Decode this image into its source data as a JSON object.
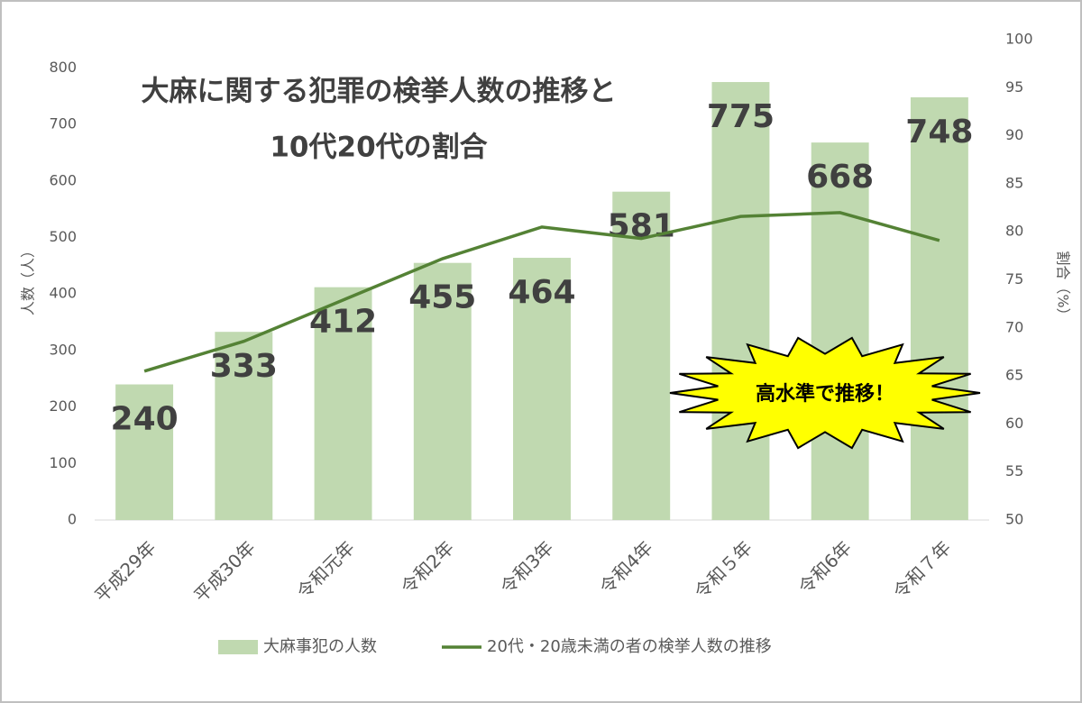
{
  "chart_data": {
    "type": "bar_line",
    "title": [
      "大麻に関する犯罪の検挙人数の推移と",
      "10代20代の割合"
    ],
    "y_label": "人数（人）",
    "y2_label": "割合（%）",
    "annotation": "高水準で推移！",
    "categories": [
      "平成29年",
      "平成30年",
      "令和元年",
      "令和2年",
      "令和3年",
      "令和4年",
      "令和５年",
      "令和6年",
      "令和７年"
    ],
    "series": [
      {
        "name": "大麻事犯の人数",
        "color": "#c0d9b0",
        "type": "bar",
        "values": [
          240,
          333,
          412,
          455,
          464,
          581,
          775,
          668,
          748
        ]
      },
      {
        "name": "20代・20歳未満の者の検挙人数の推移",
        "color": "#548235",
        "type": "line",
        "axis": "y2",
        "values": [
          65.5,
          68.6,
          72.9,
          77.2,
          80.5,
          79.3,
          81.6,
          82.0,
          79.1
        ]
      }
    ],
    "ylim": [
      0,
      850
    ],
    "yticks": [
      0,
      100,
      200,
      300,
      400,
      500,
      600,
      700,
      800
    ],
    "y2lim": [
      50,
      100
    ],
    "y2ticks": [
      50,
      55,
      60,
      65,
      70,
      75,
      80,
      85,
      90,
      95,
      100
    ],
    "grid": false,
    "legend": "bottom"
  }
}
